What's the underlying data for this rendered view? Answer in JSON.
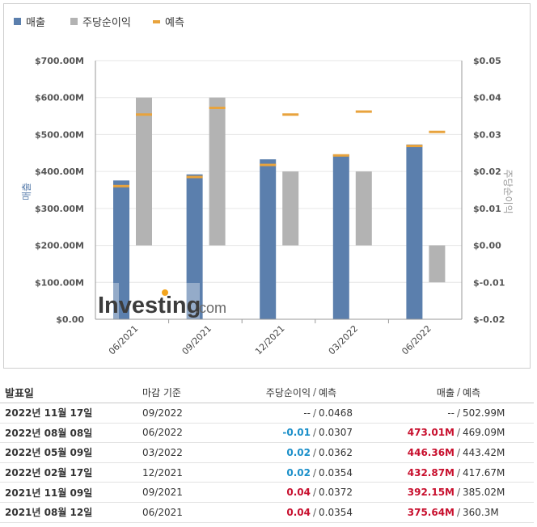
{
  "legend": [
    {
      "label": "매출",
      "color": "#5b7fad"
    },
    {
      "label": "주당순이익",
      "color": "#b3b3b3"
    },
    {
      "label": "예측",
      "color": "#e8a33d"
    }
  ],
  "watermark": {
    "brand": "Investing",
    "suffix": ".com"
  },
  "chart_data": {
    "type": "bar",
    "categories": [
      "06/2021",
      "09/2021",
      "12/2021",
      "03/2022",
      "06/2022"
    ],
    "series": [
      {
        "name": "매출",
        "axis": "left",
        "values": [
          375.64,
          392.15,
          432.87,
          446.36,
          473.01
        ],
        "forecast": [
          360.3,
          385.02,
          417.67,
          443.42,
          469.09
        ]
      },
      {
        "name": "주당순이익",
        "axis": "right",
        "values": [
          0.04,
          0.04,
          0.02,
          0.02,
          -0.01
        ],
        "forecast": [
          0.0354,
          0.0372,
          0.0354,
          0.0362,
          0.0307
        ]
      }
    ],
    "ylabel_left": "매출",
    "ylabel_right": "주당순이익",
    "ylim_left": [
      0,
      700
    ],
    "ylim_right": [
      -0.02,
      0.05
    ],
    "yticks_left": [
      "$0.00",
      "$100.00M",
      "$200.00M",
      "$300.00M",
      "$400.00M",
      "$500.00M",
      "$600.00M",
      "$700.00M"
    ],
    "yticks_right": [
      "$-0.02",
      "$-0.01",
      "$0.00",
      "$0.01",
      "$0.02",
      "$0.03",
      "$0.04",
      "$0.05"
    ],
    "legend_position": "top-left"
  },
  "table": {
    "headers": {
      "date": "발표일",
      "period": "마감 기준",
      "eps": "주당순이익",
      "eps_sep": "/",
      "eps_forecast": "예측",
      "revenue": "매출",
      "rev_sep": "/",
      "rev_forecast": "예측"
    },
    "rows": [
      {
        "date": "2022년 11월 17일",
        "period": "09/2022",
        "eps": "--",
        "eps_sep": "/",
        "eps_forecast": "0.0468",
        "revenue": "--",
        "rev_sep": "/",
        "rev_forecast": "502.99M",
        "eps_class": "neu",
        "rev_class": "neu"
      },
      {
        "date": "2022년 08월 08일",
        "period": "06/2022",
        "eps": "-0.01",
        "eps_sep": "/",
        "eps_forecast": "0.0307",
        "revenue": "473.01M",
        "rev_sep": "/",
        "rev_forecast": "469.09M",
        "eps_class": "neg",
        "rev_class": "pos"
      },
      {
        "date": "2022년 05월 09일",
        "period": "03/2022",
        "eps": "0.02",
        "eps_sep": "/",
        "eps_forecast": "0.0362",
        "revenue": "446.36M",
        "rev_sep": "/",
        "rev_forecast": "443.42M",
        "eps_class": "neg",
        "rev_class": "pos"
      },
      {
        "date": "2022년 02월 17일",
        "period": "12/2021",
        "eps": "0.02",
        "eps_sep": "/",
        "eps_forecast": "0.0354",
        "revenue": "432.87M",
        "rev_sep": "/",
        "rev_forecast": "417.67M",
        "eps_class": "neg",
        "rev_class": "pos"
      },
      {
        "date": "2021년 11월 09일",
        "period": "09/2021",
        "eps": "0.04",
        "eps_sep": "/",
        "eps_forecast": "0.0372",
        "revenue": "392.15M",
        "rev_sep": "/",
        "rev_forecast": "385.02M",
        "eps_class": "pos",
        "rev_class": "pos"
      },
      {
        "date": "2021년 08월 12일",
        "period": "06/2021",
        "eps": "0.04",
        "eps_sep": "/",
        "eps_forecast": "0.0354",
        "revenue": "375.64M",
        "rev_sep": "/",
        "rev_forecast": "360.3M",
        "eps_class": "pos",
        "rev_class": "pos"
      }
    ]
  }
}
